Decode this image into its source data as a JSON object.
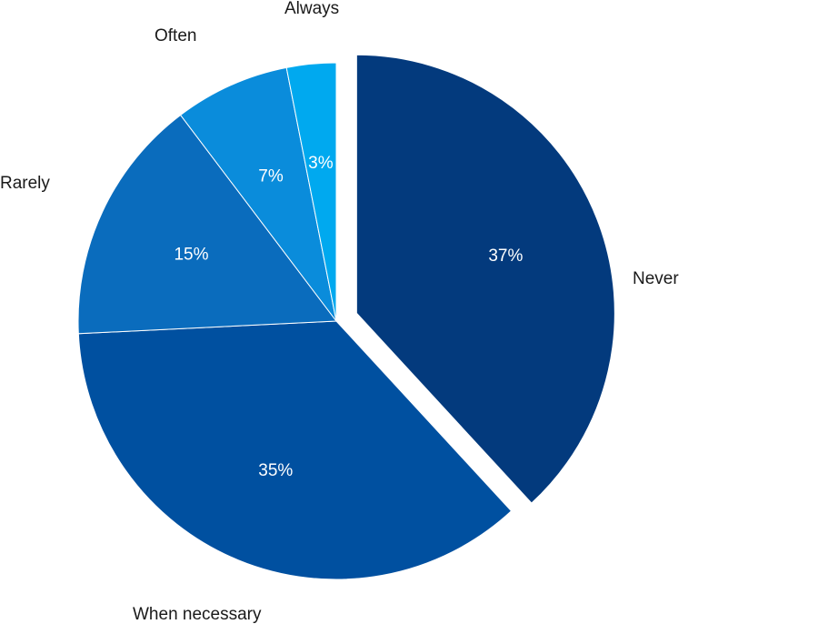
{
  "chart_data": {
    "type": "pie",
    "title": "",
    "slices": [
      {
        "label": "Never",
        "value": 37,
        "value_label": "37%",
        "color": "#033a7d",
        "exploded": true
      },
      {
        "label": "When necessary",
        "value": 35,
        "value_label": "35%",
        "color": "#0050a0",
        "exploded": false
      },
      {
        "label": "Rarely",
        "value": 15,
        "value_label": "15%",
        "color": "#0a6cbd",
        "exploded": false
      },
      {
        "label": "Often",
        "value": 7,
        "value_label": "7%",
        "color": "#0a8cdb",
        "exploded": false
      },
      {
        "label": "Always",
        "value": 3,
        "value_label": "3%",
        "color": "#00a9ef",
        "exploded": false
      }
    ],
    "start": "12 o'clock",
    "direction": "clockwise",
    "legend": "none"
  }
}
